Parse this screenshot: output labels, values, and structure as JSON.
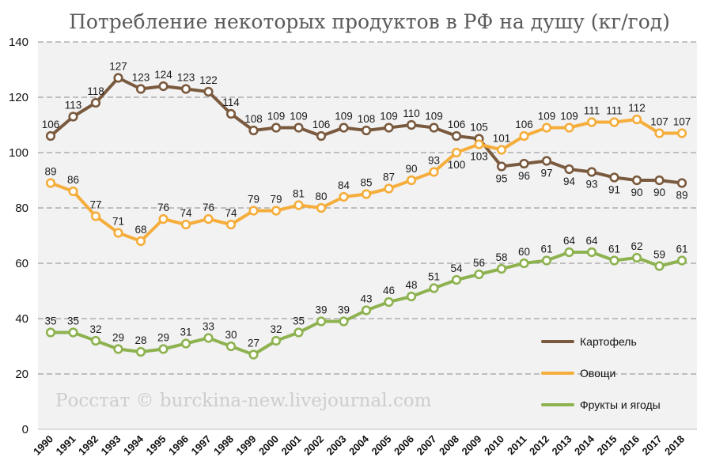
{
  "chart_data": {
    "type": "line",
    "title": "Потребление некоторых продуктов в РФ на душу (кг/год)",
    "xlabel": "",
    "ylabel": "",
    "ylim": [
      0,
      140
    ],
    "yticks": [
      "0",
      "20",
      "40",
      "60",
      "80",
      "100",
      "120",
      "140"
    ],
    "categories": [
      "1990",
      "1991",
      "1992",
      "1993",
      "1994",
      "1995",
      "1996",
      "1997",
      "1998",
      "1999",
      "2000",
      "2001",
      "2002",
      "2003",
      "2004",
      "2005",
      "2006",
      "2007",
      "2008",
      "2009",
      "2010",
      "2011",
      "2012",
      "2013",
      "2014",
      "2015",
      "2016",
      "2017",
      "2018"
    ],
    "series": [
      {
        "name": "Картофель",
        "color": "#7a5a3e",
        "values": [
          106,
          113,
          118,
          127,
          123,
          124,
          123,
          122,
          114,
          108,
          109,
          109,
          106,
          109,
          108,
          109,
          110,
          109,
          106,
          105,
          95,
          96,
          97,
          94,
          93,
          91,
          90,
          90,
          89
        ],
        "label_below": [
          "2010",
          "2011",
          "2012",
          "2013",
          "2014",
          "2015",
          "2016",
          "2017",
          "2018"
        ]
      },
      {
        "name": "Овощи",
        "color": "#f5ad3b",
        "values": [
          89,
          86,
          77,
          71,
          68,
          76,
          74,
          76,
          74,
          79,
          79,
          81,
          80,
          84,
          85,
          87,
          90,
          93,
          100,
          103,
          101,
          106,
          109,
          109,
          111,
          111,
          112,
          107,
          107
        ],
        "label_below": [
          "2008",
          "2009"
        ]
      },
      {
        "name": "Фрукты и ягоды",
        "color": "#8db24f",
        "values": [
          35,
          35,
          32,
          29,
          28,
          29,
          31,
          33,
          30,
          27,
          32,
          35,
          39,
          39,
          43,
          46,
          48,
          51,
          54,
          56,
          58,
          60,
          61,
          64,
          64,
          61,
          62,
          59,
          61
        ],
        "label_below": []
      }
    ],
    "grid": true,
    "legend_position": "right",
    "watermark": "Росстат © burckina-new.livejournal.com"
  }
}
